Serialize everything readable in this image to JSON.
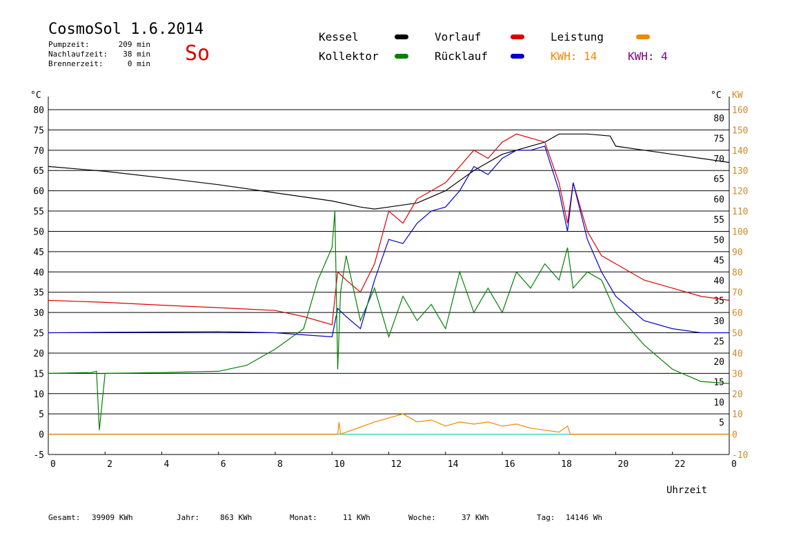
{
  "header": {
    "title": "CosmoSol 1.6.2014",
    "day": "So",
    "stats": [
      {
        "label": "Pumpzeit:",
        "value": "209 min"
      },
      {
        "label": "Nachlaufzeit:",
        "value": "38 min"
      },
      {
        "label": "Brennerzeit:",
        "value": "0 min"
      }
    ]
  },
  "legend": {
    "kessel": "Kessel",
    "vorlauf": "Vorlauf",
    "leistung": "Leistung",
    "kollektor": "Kollektor",
    "ruecklauf": "Rücklauf",
    "kwh_orange": "KWH: 14",
    "kwh_purple": "KWH: 4"
  },
  "colors": {
    "kessel": "#000000",
    "vorlauf": "#dd0000",
    "leistung": "#ee8800",
    "kollektor": "#008000",
    "ruecklauf": "#0000cc",
    "kwh_purple": "#800080",
    "zero_line": "#40e0d0",
    "right_axis": "#d08a2a"
  },
  "footer": [
    {
      "label": "Gesamt:",
      "value": "39909 KWh"
    },
    {
      "label": "Jahr:",
      "value": "863 KWh"
    },
    {
      "label": "Monat:",
      "value": "11 KWh"
    },
    {
      "label": "Woche:",
      "value": "37 KWh"
    },
    {
      "label": "Tag:",
      "value": "14146 Wh"
    }
  ],
  "chart_data": {
    "type": "line",
    "xlabel": "Uhrzeit",
    "ylabel_left": "°C",
    "ylabel_right_1": "°C",
    "ylabel_right_2": "KW",
    "xlim": [
      0,
      24
    ],
    "ylim": [
      -5,
      80
    ],
    "x_ticks": [
      "0",
      "2",
      "4",
      "6",
      "8",
      "10",
      "12",
      "14",
      "16",
      "18",
      "20",
      "22",
      "0"
    ],
    "y_ticks_left": [
      "80",
      "75",
      "70",
      "65",
      "60",
      "55",
      "50",
      "45",
      "40",
      "35",
      "30",
      "25",
      "20",
      "15",
      "10",
      "5",
      "0",
      "-5"
    ],
    "y_ticks_right_celsius": [
      "80",
      "75",
      "70",
      "65",
      "60",
      "55",
      "50",
      "45",
      "40",
      "35",
      "30",
      "25",
      "20",
      "15",
      "10",
      "5"
    ],
    "y_ticks_right_kw": [
      "160",
      "150",
      "140",
      "130",
      "120",
      "110",
      "100",
      "90",
      "80",
      "70",
      "60",
      "50",
      "40",
      "30",
      "20",
      "10",
      "0",
      "-10"
    ],
    "grid": true,
    "series": [
      {
        "name": "Kessel",
        "color": "#000000",
        "x": [
          0,
          2,
          4,
          6,
          8,
          9,
          10,
          11,
          11.5,
          12,
          13,
          14,
          15,
          16,
          17,
          17.5,
          18,
          19,
          19.8,
          20,
          21,
          22,
          23,
          24
        ],
        "y": [
          66,
          64.8,
          63.2,
          61.5,
          59.5,
          58.5,
          57.5,
          56,
          55.5,
          56,
          57,
          60,
          65,
          69,
          71,
          72,
          74,
          74,
          73.5,
          71,
          70,
          69,
          68,
          67
        ]
      },
      {
        "name": "Vorlauf",
        "color": "#dd0000",
        "x": [
          0,
          2,
          4,
          6,
          8,
          9,
          10,
          10.2,
          10.5,
          11,
          11.5,
          12,
          12.5,
          13,
          13.5,
          14,
          14.5,
          15,
          15.5,
          16,
          16.5,
          17,
          17.5,
          18,
          18.3,
          18.5,
          19,
          19.5,
          20,
          21,
          22,
          23,
          24
        ],
        "y": [
          33,
          32.5,
          31.8,
          31.2,
          30.5,
          29,
          27,
          40,
          38,
          35,
          42,
          55,
          52,
          58,
          60,
          62,
          66,
          70,
          68,
          72,
          74,
          73,
          72,
          62,
          52,
          62,
          50,
          44,
          42,
          38,
          36,
          34,
          33
        ]
      },
      {
        "name": "Rücklauf",
        "color": "#0000cc",
        "x": [
          0,
          2,
          4,
          6,
          8,
          9,
          10,
          10.2,
          10.5,
          11,
          11.5,
          12,
          12.5,
          13,
          13.5,
          14,
          14.5,
          15,
          15.5,
          16,
          16.5,
          17,
          17.5,
          18,
          18.3,
          18.5,
          19,
          19.5,
          20,
          21,
          22,
          23,
          24
        ],
        "y": [
          25,
          25.1,
          25.2,
          25.3,
          25,
          24.5,
          24,
          31,
          29,
          26,
          38,
          48,
          47,
          52,
          55,
          56,
          60,
          66,
          64,
          68,
          70,
          70,
          71,
          60,
          50,
          62,
          48,
          40,
          34,
          28,
          26,
          25,
          25
        ]
      },
      {
        "name": "Kollektor",
        "color": "#008000",
        "x": [
          0,
          1.5,
          1.7,
          1.8,
          2,
          4,
          6,
          7,
          8,
          9,
          9.5,
          10,
          10.1,
          10.2,
          10.3,
          10.5,
          11,
          11.5,
          12,
          12.5,
          13,
          13.5,
          14,
          14.5,
          15,
          15.5,
          16,
          16.5,
          17,
          17.5,
          18,
          18.3,
          18.5,
          19,
          19.5,
          20,
          21,
          22,
          23,
          24
        ],
        "y": [
          15,
          15.2,
          15.5,
          1,
          15,
          15.2,
          15.5,
          17,
          21,
          26,
          38,
          46,
          55,
          16,
          35,
          44,
          28,
          36,
          24,
          34,
          28,
          32,
          26,
          40,
          30,
          36,
          30,
          40,
          36,
          42,
          38,
          46,
          36,
          40,
          38,
          30,
          22,
          16,
          13,
          12.5
        ]
      },
      {
        "name": "Leistung",
        "color": "#ee8800",
        "x": [
          0,
          10.2,
          10.25,
          10.3,
          11.5,
          12,
          12.5,
          13,
          13.5,
          14,
          14.5,
          15,
          15.5,
          16,
          16.5,
          17,
          17.5,
          18,
          18.3,
          18.4,
          24
        ],
        "y": [
          0,
          0,
          3,
          0,
          3,
          4,
          5,
          3,
          3.5,
          2,
          3,
          2.5,
          3,
          2,
          2.5,
          1.5,
          1,
          0.5,
          2,
          0,
          0
        ]
      }
    ]
  }
}
